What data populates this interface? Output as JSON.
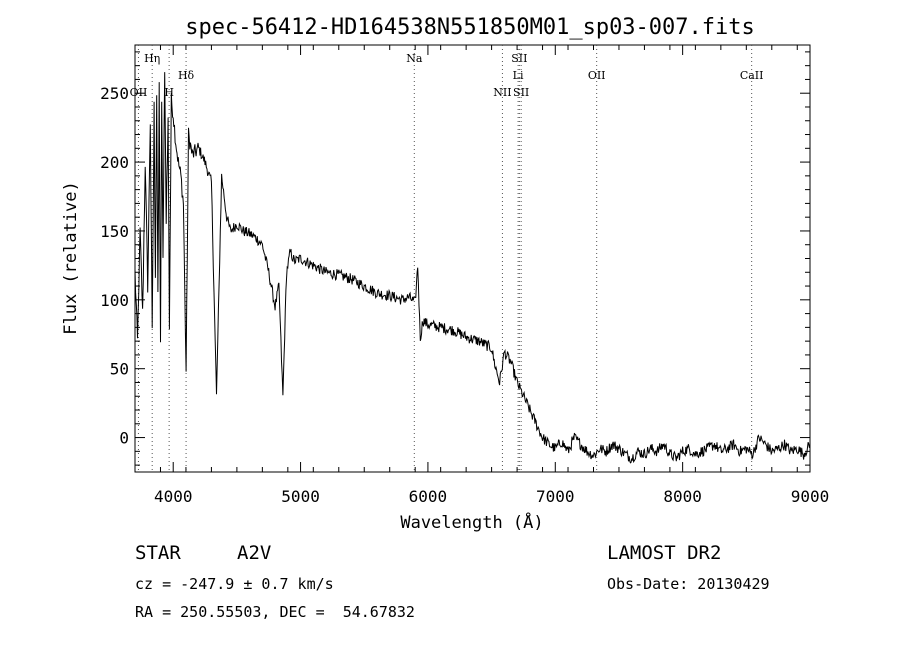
{
  "chart_data": {
    "type": "line",
    "title": "spec-56412-HD164538N551850M01_sp03-007.fits",
    "xlabel": "Wavelength (Å)",
    "ylabel": "Flux (relative)",
    "xlim": [
      3700,
      9000
    ],
    "ylim": [
      -25,
      285
    ],
    "x_ticks": [
      4000,
      5000,
      6000,
      7000,
      8000,
      9000
    ],
    "y_ticks": [
      0,
      50,
      100,
      150,
      200,
      250
    ],
    "grid": false,
    "series": [
      {
        "x": [
          3700,
          3720,
          3740,
          3760,
          3780,
          3800,
          3820,
          3835,
          3850,
          3860,
          3870,
          3880,
          3890,
          3900,
          3910,
          3920,
          3933,
          3945,
          3960,
          3970,
          3985,
          4000,
          4020,
          4040,
          4060,
          4080,
          4101,
          4120,
          4150,
          4200,
          4250,
          4300,
          4340,
          4380,
          4420,
          4450,
          4500,
          4550,
          4600,
          4650,
          4700,
          4750,
          4800,
          4830,
          4861,
          4890,
          4920,
          4950,
          5000,
          5100,
          5200,
          5300,
          5400,
          5500,
          5600,
          5700,
          5800,
          5850,
          5900,
          5920,
          5940,
          5960,
          6000,
          6100,
          6200,
          6300,
          6400,
          6500,
          6520,
          6563,
          6600,
          6650,
          6700,
          6750,
          6800,
          6850,
          6900,
          6950,
          7000,
          7050,
          7100,
          7150,
          7200,
          7250,
          7300,
          7350,
          7400,
          7450,
          7500,
          7550,
          7600,
          7650,
          7700,
          7750,
          7800,
          7850,
          7900,
          7950,
          8000,
          8050,
          8100,
          8150,
          8200,
          8250,
          8300,
          8350,
          8400,
          8450,
          8500,
          8550,
          8600,
          8650,
          8700,
          8750,
          8800,
          8850,
          8900,
          8950,
          9000
        ],
        "y": [
          120,
          70,
          150,
          90,
          200,
          110,
          230,
          75,
          240,
          120,
          250,
          100,
          255,
          70,
          240,
          130,
          270,
          160,
          230,
          80,
          245,
          235,
          215,
          200,
          190,
          170,
          48,
          220,
          205,
          210,
          200,
          185,
          30,
          190,
          160,
          150,
          155,
          150,
          148,
          145,
          140,
          120,
          95,
          110,
          30,
          120,
          135,
          128,
          130,
          125,
          120,
          118,
          115,
          110,
          105,
          103,
          100,
          102,
          98,
          125,
          72,
          85,
          82,
          80,
          78,
          73,
          70,
          65,
          55,
          40,
          62,
          55,
          40,
          30,
          20,
          10,
          0,
          -5,
          -8,
          -3,
          -10,
          0,
          -5,
          -10,
          -13,
          -8,
          -10,
          -5,
          -8,
          -12,
          -15,
          -10,
          -12,
          -8,
          -10,
          -5,
          -12,
          -15,
          -10,
          -8,
          -12,
          -10,
          -8,
          -5,
          -10,
          -8,
          -5,
          -10,
          -8,
          -12,
          0,
          -5,
          -10,
          -8,
          -5,
          -10,
          -8,
          -12,
          -5
        ]
      }
    ],
    "line_markers": [
      {
        "wavelength": 3727,
        "label": "OII",
        "row": 2
      },
      {
        "wavelength": 3835,
        "label": "Hη",
        "row": 0
      },
      {
        "wavelength": 3968,
        "label": "H",
        "row": 2
      },
      {
        "wavelength": 4101,
        "label": "Hδ",
        "row": 1
      },
      {
        "wavelength": 5893,
        "label": "Na",
        "row": 0
      },
      {
        "wavelength": 6585,
        "label": "NII",
        "row": 2
      },
      {
        "wavelength": 6708,
        "label": "Li",
        "row": 1
      },
      {
        "wavelength": 6718,
        "label": "SII",
        "row": 0
      },
      {
        "wavelength": 6732,
        "label": "SII",
        "row": 2
      },
      {
        "wavelength": 7325,
        "label": "OII",
        "row": 1
      },
      {
        "wavelength": 8542,
        "label": "CaII",
        "row": 1
      }
    ]
  },
  "info": {
    "object_class": "STAR",
    "subclass": "A2V",
    "survey": "LAMOST DR2",
    "redshift_line": "cz = -247.9 ± 0.7 km/s",
    "obs_date": "Obs-Date: 20130429",
    "coords": "RA = 250.55503, DEC =  54.67832"
  }
}
